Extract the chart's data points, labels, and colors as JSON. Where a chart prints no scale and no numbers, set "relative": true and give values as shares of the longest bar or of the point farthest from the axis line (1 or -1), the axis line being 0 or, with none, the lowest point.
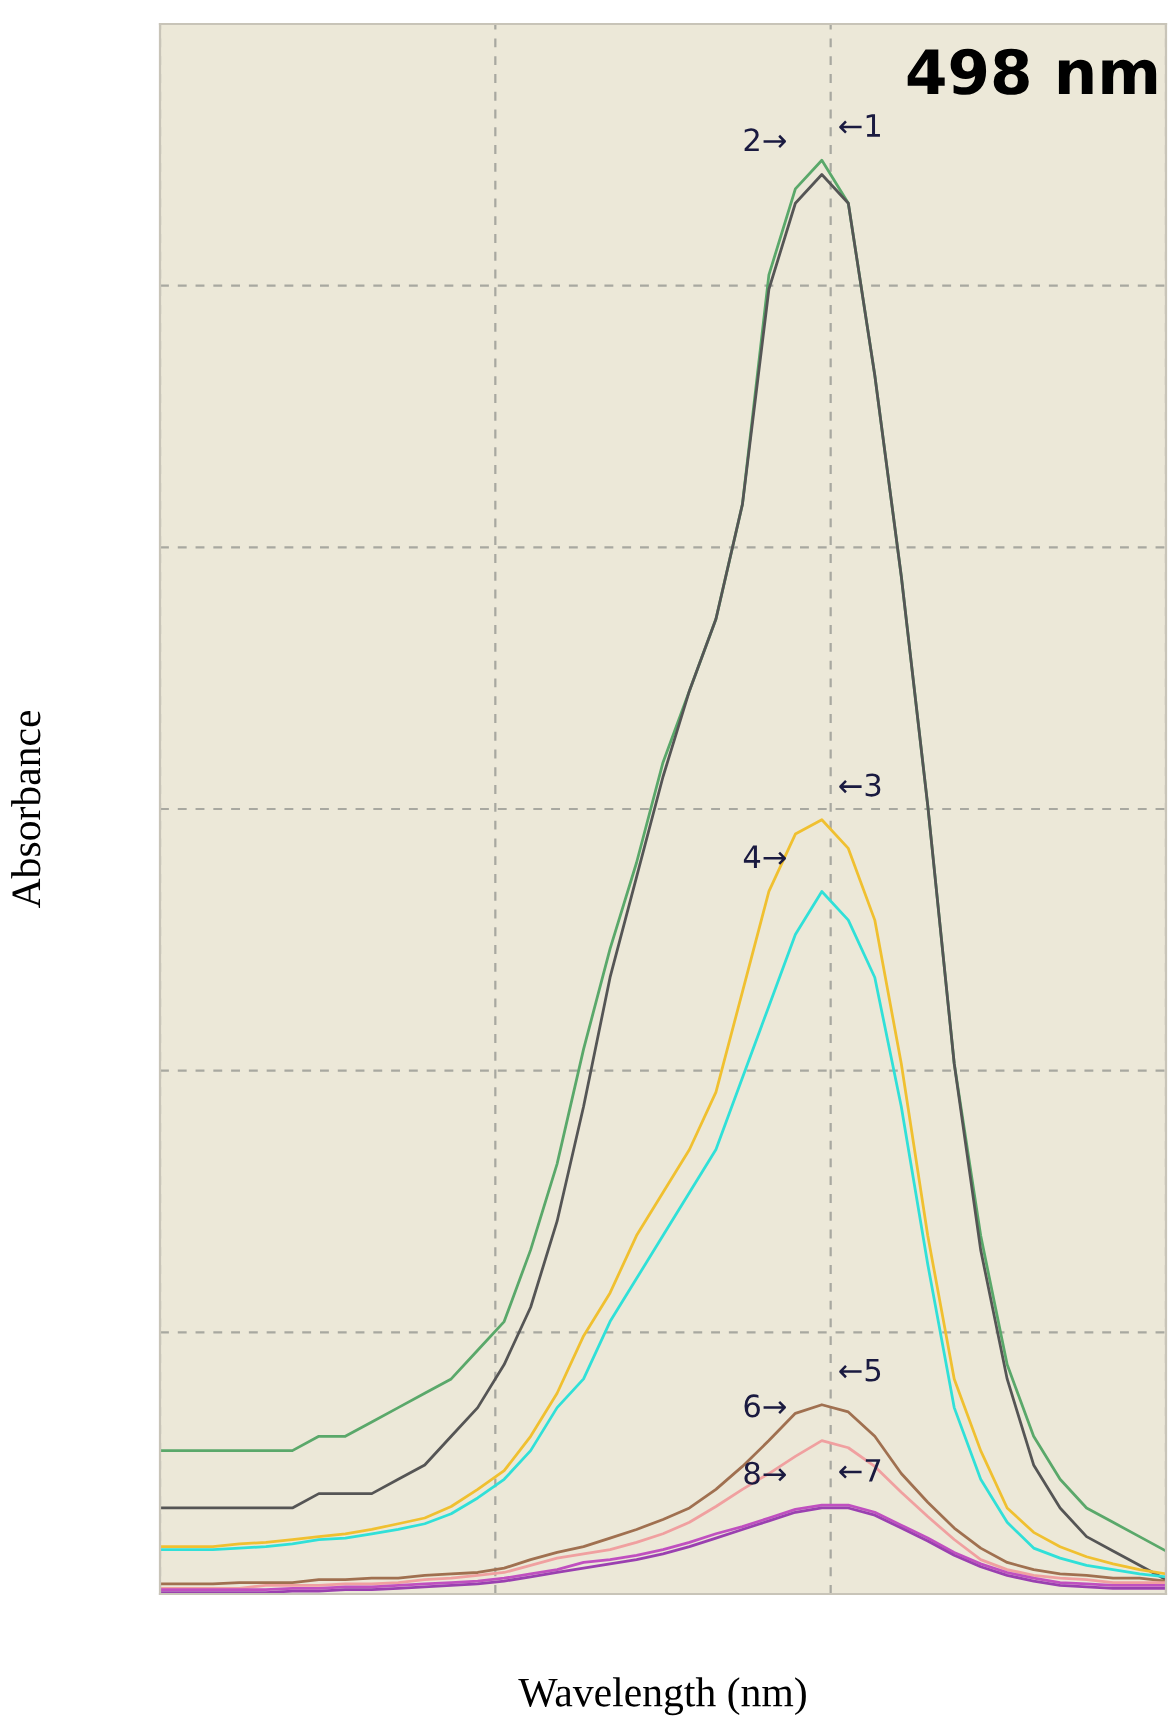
{
  "chart_data": {
    "type": "line",
    "relative": true,
    "xlabel": "Wavelength (nm)",
    "ylabel": "Absorbance",
    "grid": true,
    "tick_labels": false,
    "line_style": "solid",
    "marker": "none",
    "categories": [
      null,
      null,
      null,
      null,
      null,
      null,
      null,
      null,
      null,
      null,
      null,
      null,
      null,
      null,
      null,
      null,
      null,
      null,
      null,
      null,
      null,
      null,
      null,
      null,
      null,
      null,
      null,
      null,
      null,
      null,
      null,
      null,
      null,
      null,
      null,
      null,
      null,
      null,
      null
    ],
    "series": [
      {
        "color": "#5aa86a",
        "values": [
          0.1,
          0.1,
          0.1,
          0.1,
          0.1,
          0.1,
          0.11,
          0.11,
          0.12,
          0.13,
          0.14,
          0.15,
          0.17,
          0.19,
          0.24,
          0.3,
          0.38,
          0.45,
          0.51,
          0.58,
          0.63,
          0.68,
          0.76,
          0.92,
          0.98,
          1,
          0.97,
          0.85,
          0.71,
          0.55,
          0.37,
          0.25,
          0.16,
          0.11,
          0.08,
          0.06,
          0.05,
          0.04,
          0.03
        ]
      },
      {
        "color": "#555555",
        "values": [
          0.06,
          0.06,
          0.06,
          0.06,
          0.06,
          0.06,
          0.07,
          0.07,
          0.07,
          0.08,
          0.09,
          0.11,
          0.13,
          0.16,
          0.2,
          0.26,
          0.34,
          0.43,
          0.5,
          0.57,
          0.63,
          0.68,
          0.76,
          0.91,
          0.97,
          0.99,
          0.97,
          0.85,
          0.71,
          0.55,
          0.37,
          0.24,
          0.15,
          0.09,
          0.06,
          0.04,
          0.03,
          0.02,
          0.01
        ]
      },
      {
        "color": "#f0c030",
        "values": [
          0.033,
          0.033,
          0.033,
          0.035,
          0.036,
          0.038,
          0.04,
          0.042,
          0.045,
          0.049,
          0.053,
          0.061,
          0.073,
          0.086,
          0.11,
          0.14,
          0.18,
          0.21,
          0.25,
          0.28,
          0.31,
          0.35,
          0.42,
          0.49,
          0.53,
          0.54,
          0.52,
          0.47,
          0.37,
          0.25,
          0.15,
          0.1,
          0.06,
          0.043,
          0.033,
          0.026,
          0.021,
          0.017,
          0.014
        ]
      },
      {
        "color": "#30e0d8",
        "values": [
          0.031,
          0.031,
          0.031,
          0.032,
          0.033,
          0.035,
          0.038,
          0.039,
          0.042,
          0.045,
          0.049,
          0.056,
          0.067,
          0.08,
          0.1,
          0.13,
          0.15,
          0.19,
          0.22,
          0.25,
          0.28,
          0.31,
          0.36,
          0.41,
          0.46,
          0.49,
          0.47,
          0.43,
          0.34,
          0.23,
          0.13,
          0.08,
          0.05,
          0.032,
          0.025,
          0.02,
          0.017,
          0.014,
          0.012
        ]
      },
      {
        "color": "#a07050",
        "values": [
          0.007,
          0.007,
          0.007,
          0.008,
          0.008,
          0.008,
          0.01,
          0.01,
          0.011,
          0.011,
          0.013,
          0.014,
          0.015,
          0.018,
          0.024,
          0.029,
          0.033,
          0.039,
          0.045,
          0.052,
          0.06,
          0.073,
          0.089,
          0.107,
          0.126,
          0.132,
          0.127,
          0.11,
          0.084,
          0.064,
          0.046,
          0.032,
          0.022,
          0.017,
          0.014,
          0.013,
          0.011,
          0.011,
          0.009
        ]
      },
      {
        "color": "#f0a0a0",
        "values": [
          0.004,
          0.004,
          0.004,
          0.004,
          0.006,
          0.006,
          0.006,
          0.007,
          0.007,
          0.008,
          0.01,
          0.011,
          0.013,
          0.015,
          0.02,
          0.025,
          0.028,
          0.031,
          0.036,
          0.042,
          0.05,
          0.061,
          0.073,
          0.084,
          0.096,
          0.107,
          0.102,
          0.089,
          0.071,
          0.054,
          0.038,
          0.024,
          0.017,
          0.013,
          0.011,
          0.01,
          0.008,
          0.008,
          0.008
        ]
      },
      {
        "color": "#c050c0",
        "values": [
          0.003,
          0.003,
          0.003,
          0.003,
          0.003,
          0.004,
          0.004,
          0.005,
          0.005,
          0.006,
          0.007,
          0.008,
          0.009,
          0.011,
          0.014,
          0.017,
          0.022,
          0.024,
          0.027,
          0.031,
          0.036,
          0.042,
          0.047,
          0.053,
          0.059,
          0.062,
          0.062,
          0.057,
          0.048,
          0.039,
          0.029,
          0.021,
          0.015,
          0.011,
          0.008,
          0.007,
          0.006,
          0.006,
          0.006
        ]
      },
      {
        "color": "#9a40b0",
        "values": [
          0.001,
          0.001,
          0.001,
          0.001,
          0.001,
          0.002,
          0.002,
          0.003,
          0.003,
          0.004,
          0.005,
          0.006,
          0.007,
          0.009,
          0.012,
          0.015,
          0.018,
          0.021,
          0.024,
          0.028,
          0.033,
          0.039,
          0.045,
          0.051,
          0.057,
          0.06,
          0.06,
          0.055,
          0.046,
          0.037,
          0.027,
          0.019,
          0.013,
          0.009,
          0.006,
          0.005,
          0.004,
          0.004,
          0.004
        ]
      }
    ],
    "annotations": [
      "←1",
      "2→",
      "←3",
      "4→",
      "←5",
      "6→",
      "←7",
      "8→",
      "498 nm"
    ]
  }
}
